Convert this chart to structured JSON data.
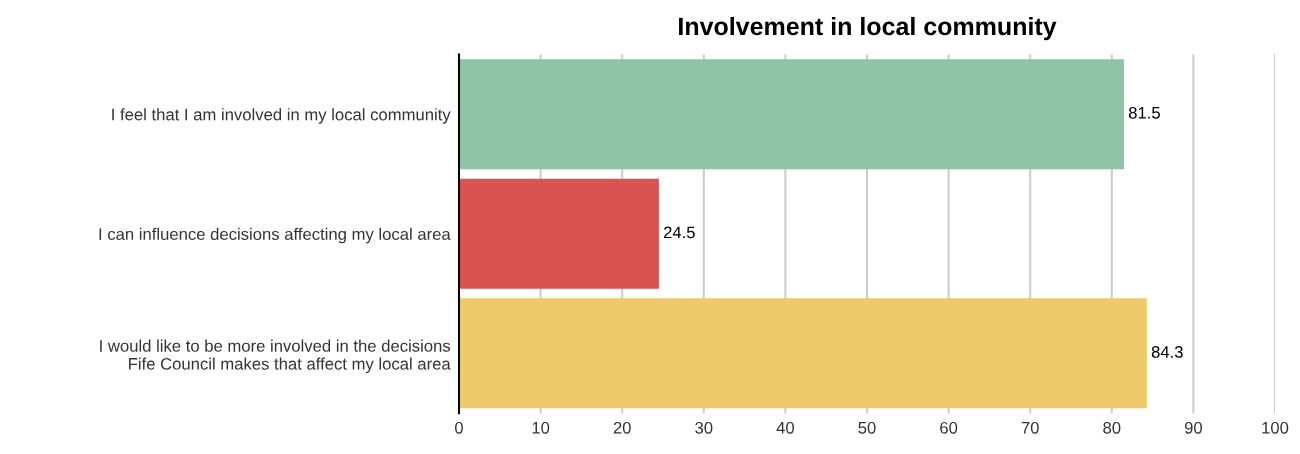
{
  "chart_data": {
    "type": "bar",
    "orientation": "horizontal",
    "title": "Involvement in local community",
    "categories": [
      "I feel that I am involved in my local community",
      "I can influence decisions affecting my local area",
      "I would like to be more involved in the decisions\nFife Council makes that affect my local area"
    ],
    "values": [
      81.5,
      24.5,
      84.3
    ],
    "colors": [
      "#8fc3a8",
      "#d95353",
      "#eeca6a"
    ],
    "xlim": [
      0,
      100
    ],
    "xticks": [
      0,
      10,
      20,
      30,
      40,
      50,
      60,
      70,
      80,
      90,
      100
    ],
    "grid": "x",
    "data_labels": true,
    "legend": false
  }
}
